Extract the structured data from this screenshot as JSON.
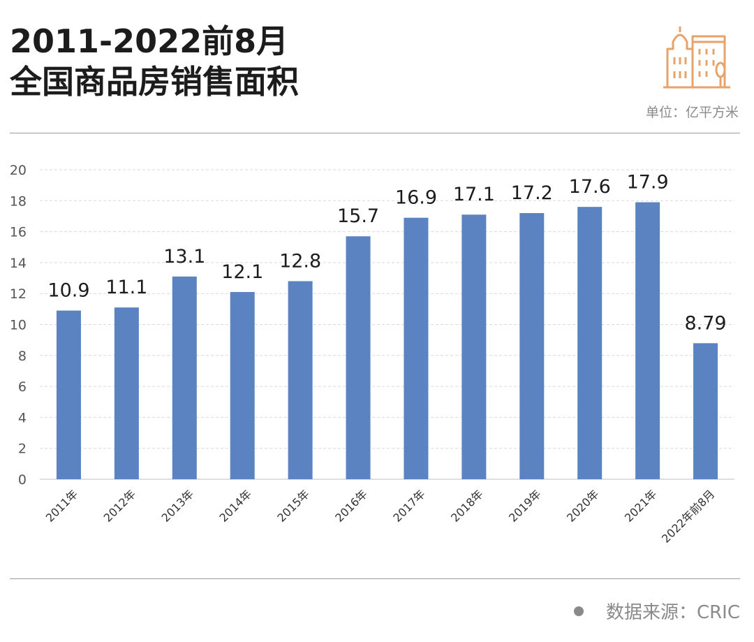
{
  "header": {
    "title_line1": "2011-2022前8月",
    "title_line2": "全国商品房销售面积",
    "unit": "单位：亿平方米",
    "logo_icon": "buildings-icon",
    "accent_color": "#E8A36B"
  },
  "footer": {
    "source": "数据来源：CRIC"
  },
  "chart_data": {
    "type": "bar",
    "title": "2011-2022前8月 全国商品房销售面积",
    "ylabel": "",
    "xlabel": "",
    "categories": [
      "2011年",
      "2012年",
      "2013年",
      "2014年",
      "2015年",
      "2016年",
      "2017年",
      "2018年",
      "2019年",
      "2020年",
      "2021年",
      "2022年前8月"
    ],
    "values": [
      10.9,
      11.1,
      13.1,
      12.1,
      12.8,
      15.7,
      16.9,
      17.1,
      17.2,
      17.6,
      17.9,
      8.79
    ],
    "data_labels": [
      "10.9",
      "11.1",
      "13.1",
      "12.1",
      "12.8",
      "15.7",
      "16.9",
      "17.1",
      "17.2",
      "17.6",
      "17.9",
      "8.79"
    ],
    "ylim": [
      0,
      20
    ],
    "yticks": [
      0,
      2,
      4,
      6,
      8,
      10,
      12,
      14,
      16,
      18,
      20
    ],
    "grid": true,
    "bar_color": "#5B83C2",
    "legend": "none"
  }
}
